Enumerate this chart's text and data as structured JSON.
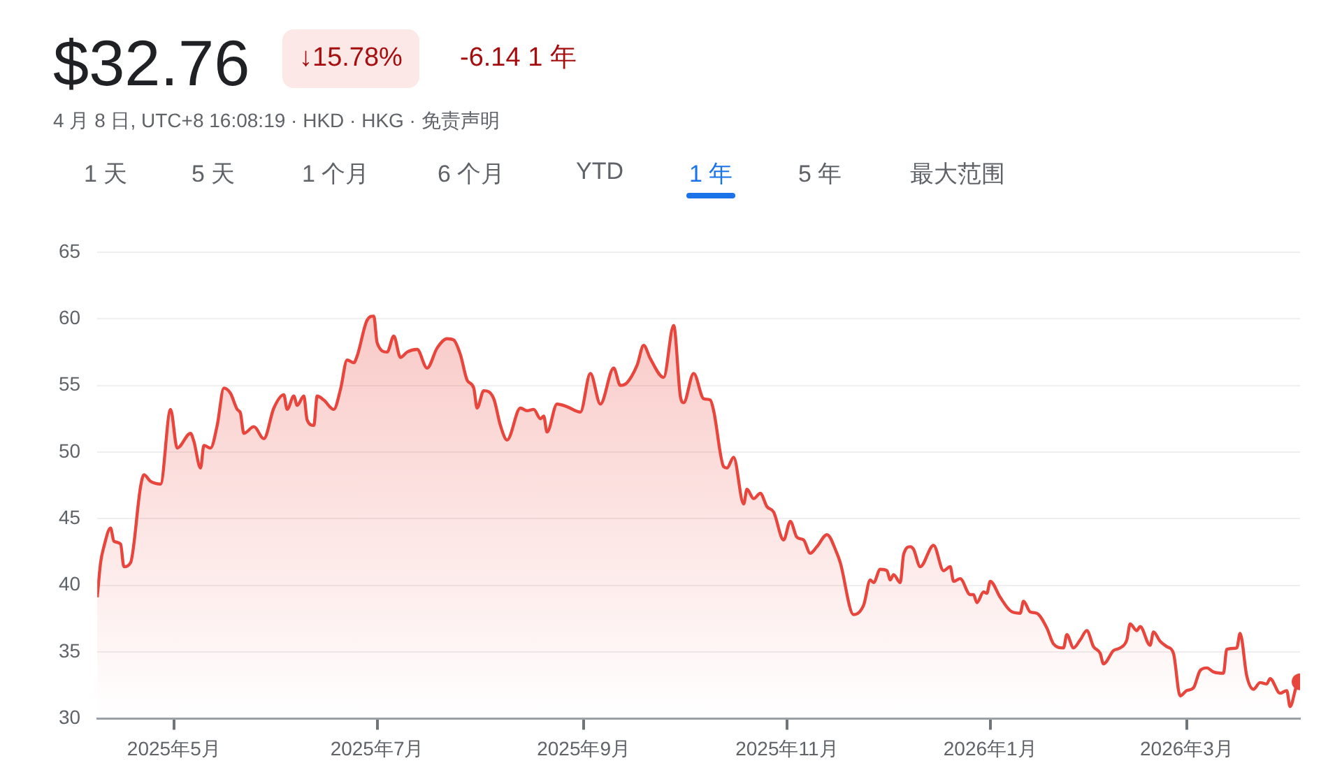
{
  "chart_data": {
    "type": "area",
    "title": "$32.76",
    "annotations": [
      "↓15.78%",
      "-6.14 1 年",
      "4 月 8 日, UTC+8 16:08:19 · HKD · HKG · 免责声明",
      "1 天",
      "5 天",
      "1 个月",
      "6 个月",
      "YTD",
      "1 年",
      "5 年",
      "最大范围"
    ],
    "xlim": [
      "2025-04-08",
      "2026-04-04"
    ],
    "xticks": [
      {
        "value": "2025-05-01",
        "label": "2025年5月"
      },
      {
        "value": "2025-07-01",
        "label": "2025年7月"
      },
      {
        "value": "2025-09-01",
        "label": "2025年9月"
      },
      {
        "value": "2025-11-01",
        "label": "2025年11月"
      },
      {
        "value": "2026-01-01",
        "label": "2026年1月"
      },
      {
        "value": "2026-03-01",
        "label": "2026年3月"
      }
    ],
    "ylim": [
      30,
      65
    ],
    "yticks": [
      30,
      35,
      40,
      45,
      50,
      55,
      60,
      65
    ],
    "grid": "y",
    "series": [
      {
        "color": "#e8453c",
        "x": [
          "2025-04-08",
          "2025-04-09",
          "2025-04-10",
          "2025-04-12",
          "2025-04-13",
          "2025-04-15",
          "2025-04-16",
          "2025-04-18",
          "2025-04-21",
          "2025-04-22",
          "2025-04-24",
          "2025-04-27",
          "2025-04-30",
          "2025-05-02",
          "2025-05-06",
          "2025-05-07",
          "2025-05-09",
          "2025-05-10",
          "2025-05-12",
          "2025-05-14",
          "2025-05-16",
          "2025-05-18",
          "2025-05-20",
          "2025-05-21",
          "2025-05-22",
          "2025-05-25",
          "2025-05-28",
          "2025-05-31",
          "2025-06-03",
          "2025-06-04",
          "2025-06-06",
          "2025-06-07",
          "2025-06-09",
          "2025-06-10",
          "2025-06-12",
          "2025-06-13",
          "2025-06-15",
          "2025-06-18",
          "2025-06-20",
          "2025-06-22",
          "2025-06-24",
          "2025-06-25",
          "2025-06-28",
          "2025-06-30",
          "2025-07-01",
          "2025-07-04",
          "2025-07-06",
          "2025-07-08",
          "2025-07-10",
          "2025-07-13",
          "2025-07-16",
          "2025-07-19",
          "2025-07-22",
          "2025-07-24",
          "2025-07-26",
          "2025-07-28",
          "2025-07-30",
          "2025-07-31",
          "2025-08-02",
          "2025-08-05",
          "2025-08-07",
          "2025-08-09",
          "2025-08-13",
          "2025-08-15",
          "2025-08-17",
          "2025-08-19",
          "2025-08-20",
          "2025-08-21",
          "2025-08-24",
          "2025-08-27",
          "2025-08-31",
          "2025-09-03",
          "2025-09-06",
          "2025-09-10",
          "2025-09-12",
          "2025-09-14",
          "2025-09-17",
          "2025-09-19",
          "2025-09-21",
          "2025-09-25",
          "2025-09-28",
          "2025-09-30",
          "2025-10-01",
          "2025-10-04",
          "2025-10-07",
          "2025-10-09",
          "2025-10-10",
          "2025-10-13",
          "2025-10-14",
          "2025-10-16",
          "2025-10-19",
          "2025-10-20",
          "2025-10-22",
          "2025-10-24",
          "2025-10-26",
          "2025-10-28",
          "2025-10-31",
          "2025-11-02",
          "2025-11-04",
          "2025-11-06",
          "2025-11-08",
          "2025-11-10",
          "2025-11-13",
          "2025-11-16",
          "2025-11-17",
          "2025-11-21",
          "2025-11-24",
          "2025-11-26",
          "2025-11-27",
          "2025-11-29",
          "2025-12-01",
          "2025-12-02",
          "2025-12-03",
          "2025-12-05",
          "2025-12-06",
          "2025-12-08",
          "2025-12-09",
          "2025-12-11",
          "2025-12-15",
          "2025-12-18",
          "2025-12-20",
          "2025-12-21",
          "2025-12-23",
          "2025-12-26",
          "2025-12-27",
          "2025-12-28",
          "2025-12-30",
          "2025-12-31",
          "2026-01-01",
          "2026-01-04",
          "2026-01-07",
          "2026-01-10",
          "2026-01-11",
          "2026-01-13",
          "2026-01-15",
          "2026-01-18",
          "2026-01-20",
          "2026-01-23",
          "2026-01-24",
          "2026-01-26",
          "2026-01-28",
          "2026-01-30",
          "2026-02-01",
          "2026-02-03",
          "2026-02-04",
          "2026-02-07",
          "2026-02-09",
          "2026-02-11",
          "2026-02-12",
          "2026-02-14",
          "2026-02-15",
          "2026-02-18",
          "2026-02-19",
          "2026-02-21",
          "2026-02-23",
          "2026-02-25",
          "2026-02-27",
          "2026-03-01",
          "2026-03-03",
          "2026-03-05",
          "2026-03-07",
          "2026-03-09",
          "2026-03-12",
          "2026-03-13",
          "2026-03-16",
          "2026-03-17",
          "2026-03-19",
          "2026-03-21",
          "2026-03-23",
          "2026-03-25",
          "2026-03-26",
          "2026-03-29",
          "2026-03-31",
          "2026-04-01",
          "2026-04-03",
          "2026-04-04"
        ],
        "values": [
          39.1,
          41.7,
          42.9,
          44.3,
          43.3,
          43.1,
          41.4,
          41.7,
          47.4,
          48.3,
          47.8,
          47.6,
          53.2,
          50.3,
          51.4,
          50.8,
          48.8,
          50.5,
          50.3,
          52.0,
          54.8,
          54.4,
          53.2,
          52.9,
          51.4,
          51.9,
          51.0,
          53.3,
          54.3,
          53.2,
          54.2,
          53.5,
          54.2,
          52.4,
          52.0,
          54.2,
          53.9,
          53.2,
          54.7,
          56.9,
          56.7,
          57.2,
          59.9,
          60.2,
          58.2,
          57.5,
          58.7,
          57.1,
          57.5,
          57.7,
          56.3,
          57.8,
          58.5,
          58.4,
          57.3,
          55.4,
          54.8,
          53.3,
          54.6,
          54.0,
          52.0,
          50.9,
          53.3,
          53.1,
          53.2,
          52.5,
          52.7,
          51.5,
          53.6,
          53.4,
          53.0,
          55.9,
          53.6,
          56.3,
          55.0,
          55.2,
          56.5,
          58.0,
          57.0,
          55.6,
          59.5,
          54.2,
          53.7,
          55.9,
          54.0,
          53.9,
          53.1,
          48.9,
          48.8,
          49.6,
          46.1,
          47.2,
          46.5,
          46.9,
          45.9,
          45.5,
          43.4,
          44.8,
          43.6,
          43.4,
          42.4,
          42.9,
          43.8,
          42.4,
          41.7,
          37.8,
          38.5,
          40.4,
          40.2,
          41.2,
          41.1,
          40.4,
          40.8,
          40.2,
          42.3,
          42.9,
          42.7,
          41.4,
          43.0,
          41.1,
          41.4,
          40.3,
          40.5,
          39.3,
          39.3,
          38.7,
          39.5,
          39.4,
          40.3,
          39.1,
          38.1,
          37.9,
          38.8,
          38.0,
          37.9,
          36.8,
          35.6,
          35.3,
          36.3,
          35.3,
          35.9,
          36.6,
          35.4,
          34.9,
          34.1,
          35.1,
          35.3,
          35.9,
          37.1,
          36.6,
          36.9,
          35.5,
          36.5,
          35.8,
          35.4,
          34.9,
          31.7,
          32.1,
          32.3,
          33.6,
          33.8,
          33.5,
          33.4,
          35.2,
          35.3,
          36.4,
          33.2,
          32.2,
          32.7,
          32.6,
          33.0,
          31.9,
          32.1,
          30.9,
          32.5,
          32.76
        ]
      }
    ]
  }
}
